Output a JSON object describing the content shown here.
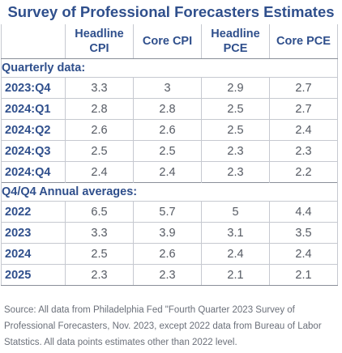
{
  "title": "Survey of Professional Forecasters Estimates",
  "columns": [
    {
      "line1": "Headline",
      "line2": "CPI"
    },
    {
      "line1": "",
      "line2": "Core CPI"
    },
    {
      "line1": "Headline",
      "line2": "PCE"
    },
    {
      "line1": "",
      "line2": "Core PCE"
    }
  ],
  "sections": [
    {
      "label": "Quarterly data:",
      "rows": [
        {
          "label": "2023:Q4",
          "values": [
            "3.3",
            "3",
            "2.9",
            "2.7"
          ]
        },
        {
          "label": "2024:Q1",
          "values": [
            "2.8",
            "2.8",
            "2.5",
            "2.7"
          ]
        },
        {
          "label": "2024:Q2",
          "values": [
            "2.6",
            "2.6",
            "2.5",
            "2.4"
          ]
        },
        {
          "label": "2024:Q3",
          "values": [
            "2.5",
            "2.5",
            "2.3",
            "2.3"
          ]
        },
        {
          "label": "2024:Q4",
          "values": [
            "2.4",
            "2.4",
            "2.3",
            "2.2"
          ]
        }
      ]
    },
    {
      "label": "Q4/Q4 Annual averages:",
      "rows": [
        {
          "label": "2022",
          "values": [
            "6.5",
            "5.7",
            "5",
            "4.4"
          ]
        },
        {
          "label": "2023",
          "values": [
            "3.3",
            "3.9",
            "3.1",
            "3.5"
          ]
        },
        {
          "label": "2024",
          "values": [
            "2.5",
            "2.6",
            "2.4",
            "2.4"
          ]
        },
        {
          "label": "2025",
          "values": [
            "2.3",
            "2.3",
            "2.1",
            "2.1"
          ]
        }
      ]
    }
  ],
  "source": "Source: All data from Philadelphia Fed \"Fourth Quarter 2023 Survey of Professional Forecasters, Nov. 2023, except 2022 data from  Bureau of Labor Statstics. All data points estimates other than 2022 level.",
  "colors": {
    "heading": "#2f4f8c",
    "value_text": "#555a63",
    "source_text": "#6b707a",
    "grid": "#c6c9d0"
  }
}
